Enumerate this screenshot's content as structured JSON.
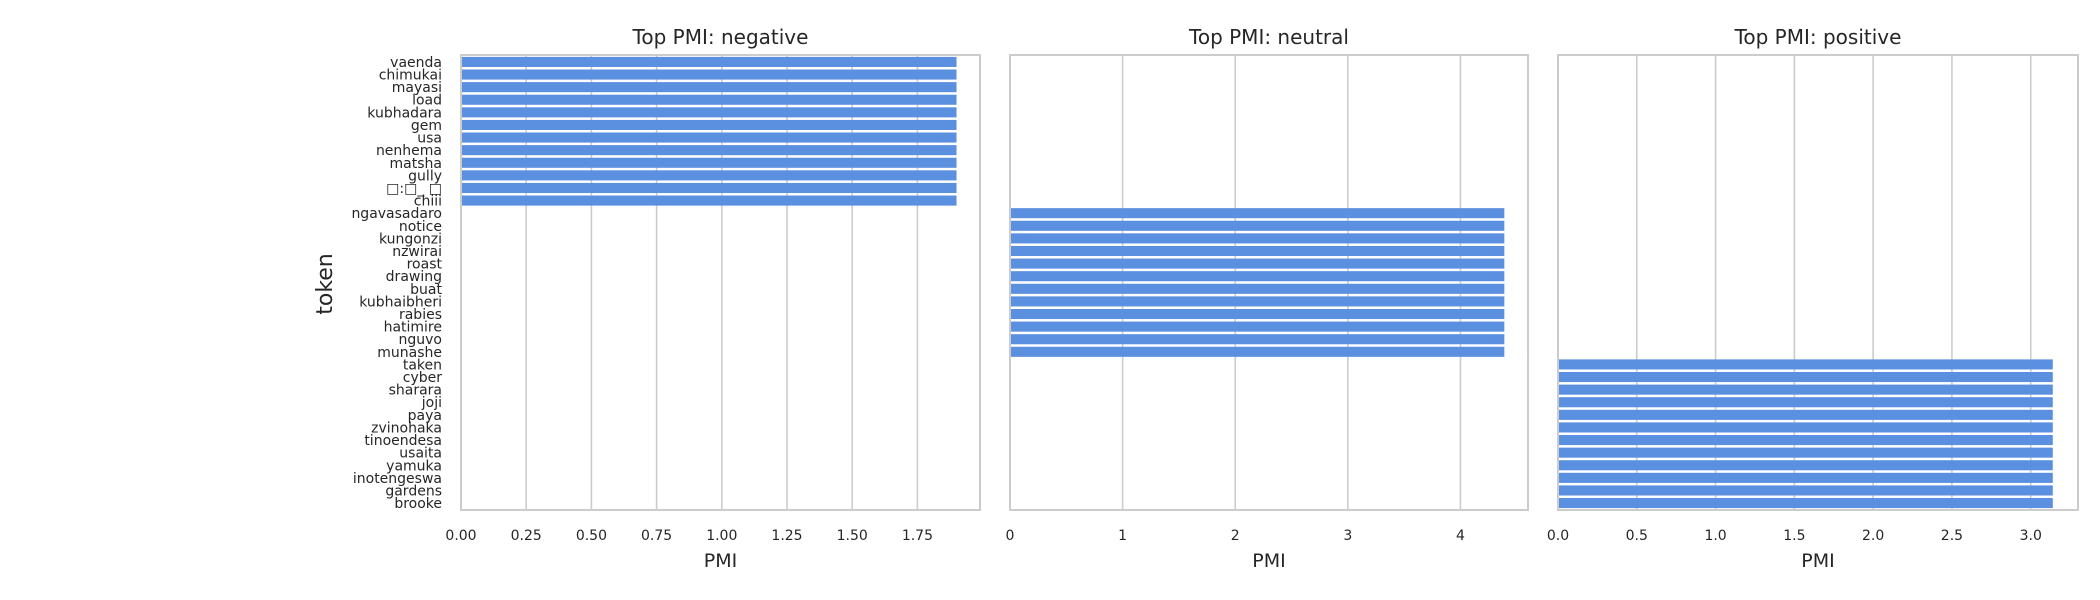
{
  "chart_data": {
    "type": "bar",
    "orientation": "horizontal",
    "ylabel": "token",
    "bar_color": "#5b8fe0",
    "categories": [
      "vaenda",
      "chimukai",
      "mayasi",
      "load",
      "kubhadara",
      "gem",
      "usa",
      "nenhema",
      "matsha",
      "gully",
      "□:□_ □",
      "chiii",
      "ngavasadaro",
      "notice",
      "kungonzi",
      "nzwirai",
      "roast",
      "drawing",
      "buat",
      "kubhaibheri",
      "rabies",
      "hatimire",
      "nguvo",
      "munashe",
      "taken",
      "cyber",
      "sharara",
      "joji",
      "paya",
      "zvinohaka",
      "tinoendesa",
      "usaita",
      "yamuka",
      "inotengeswa",
      "gardens",
      "brooke"
    ],
    "panels": [
      {
        "title": "Top PMI: negative",
        "xlabel": "PMI",
        "xlim": [
          0,
          1.99
        ],
        "xticks": [
          "0.00",
          "0.25",
          "0.50",
          "0.75",
          "1.00",
          "1.25",
          "1.50",
          "1.75"
        ],
        "xtick_values": [
          0,
          0.25,
          0.5,
          0.75,
          1.0,
          1.25,
          1.5,
          1.75
        ],
        "start_index": 0,
        "values": [
          1.9,
          1.9,
          1.9,
          1.9,
          1.9,
          1.9,
          1.9,
          1.9,
          1.9,
          1.9,
          1.9,
          1.9
        ]
      },
      {
        "title": "Top PMI: neutral",
        "xlabel": "PMI",
        "xlim": [
          0,
          4.6
        ],
        "xticks": [
          "0",
          "1",
          "2",
          "3",
          "4"
        ],
        "xtick_values": [
          0,
          1,
          2,
          3,
          4
        ],
        "start_index": 12,
        "values": [
          4.39,
          4.39,
          4.39,
          4.39,
          4.39,
          4.39,
          4.39,
          4.39,
          4.39,
          4.39,
          4.39,
          4.39
        ]
      },
      {
        "title": "Top PMI: positive",
        "xlabel": "PMI",
        "xlim": [
          0,
          3.3
        ],
        "xticks": [
          "0.0",
          "0.5",
          "1.0",
          "1.5",
          "2.0",
          "2.5",
          "3.0"
        ],
        "xtick_values": [
          0,
          0.5,
          1.0,
          1.5,
          2.0,
          2.5,
          3.0
        ],
        "start_index": 24,
        "values": [
          3.14,
          3.14,
          3.14,
          3.14,
          3.14,
          3.14,
          3.14,
          3.14,
          3.14,
          3.14,
          3.14,
          3.14
        ]
      }
    ]
  }
}
